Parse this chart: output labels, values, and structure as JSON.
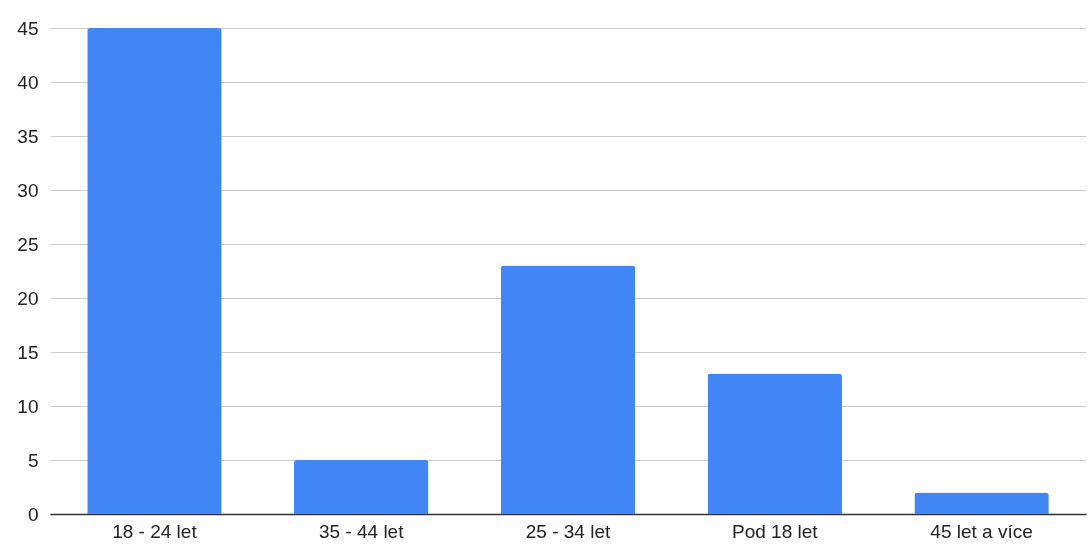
{
  "chart_data": {
    "type": "bar",
    "categories": [
      "18 - 24 let",
      "35 - 44 let",
      "25 - 34 let",
      "Pod 18 let",
      "45 let a více"
    ],
    "values": [
      45,
      5,
      23,
      13,
      2
    ],
    "color": "#4285f4",
    "ylim": [
      0,
      45
    ],
    "yticks": [
      0,
      5,
      10,
      15,
      20,
      25,
      30,
      35,
      40,
      45
    ],
    "grid": "y"
  }
}
